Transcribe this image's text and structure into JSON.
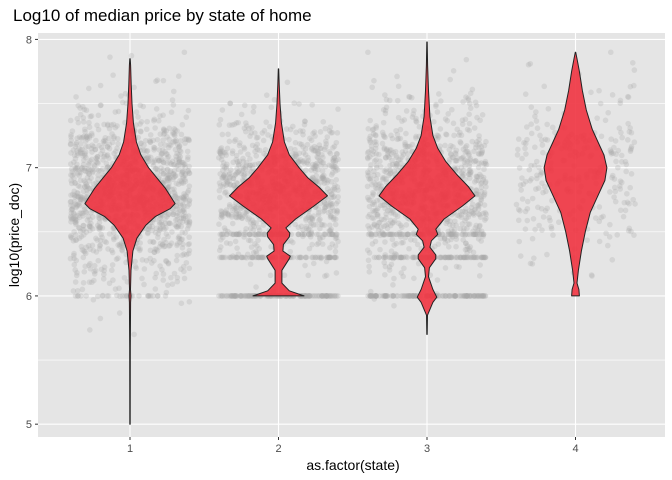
{
  "chart_data": {
    "type": "violin",
    "title": "Log10 of median price by state of home",
    "xlabel": "as.factor(state)",
    "ylabel": "log10(price_doc)",
    "categories": [
      "1",
      "2",
      "3",
      "4"
    ],
    "ylim": [
      4.9,
      8.05
    ],
    "y_ticks": [
      "5",
      "6",
      "7",
      "8"
    ],
    "grid": true,
    "colors": {
      "panel": "#e5e5e5",
      "grid": "#ffffff",
      "violin_fill": "#ef3340",
      "violin_stroke": "#222222",
      "points": "#a9a9a9"
    },
    "violins": [
      {
        "category": "1",
        "min": 5.0,
        "max": 7.85,
        "profile": [
          [
            5.0,
            0.004
          ],
          [
            5.6,
            0.006
          ],
          [
            5.95,
            0.012
          ],
          [
            6.0,
            0.02
          ],
          [
            6.05,
            0.01
          ],
          [
            6.2,
            0.02
          ],
          [
            6.35,
            0.06
          ],
          [
            6.45,
            0.14
          ],
          [
            6.55,
            0.32
          ],
          [
            6.62,
            0.52
          ],
          [
            6.68,
            0.82
          ],
          [
            6.72,
            0.92
          ],
          [
            6.78,
            0.82
          ],
          [
            6.84,
            0.72
          ],
          [
            6.92,
            0.55
          ],
          [
            7.0,
            0.38
          ],
          [
            7.1,
            0.22
          ],
          [
            7.2,
            0.13
          ],
          [
            7.35,
            0.07
          ],
          [
            7.5,
            0.04
          ],
          [
            7.65,
            0.025
          ],
          [
            7.8,
            0.012
          ],
          [
            7.85,
            0.004
          ]
        ]
      },
      {
        "category": "2",
        "min": 6.0,
        "max": 7.77,
        "profile": [
          [
            6.0,
            0.52
          ],
          [
            6.04,
            0.22
          ],
          [
            6.1,
            0.07
          ],
          [
            6.2,
            0.07
          ],
          [
            6.29,
            0.22
          ],
          [
            6.31,
            0.24
          ],
          [
            6.35,
            0.09
          ],
          [
            6.4,
            0.1
          ],
          [
            6.46,
            0.22
          ],
          [
            6.49,
            0.23
          ],
          [
            6.53,
            0.15
          ],
          [
            6.6,
            0.35
          ],
          [
            6.7,
            0.72
          ],
          [
            6.78,
            1.0
          ],
          [
            6.85,
            0.82
          ],
          [
            6.92,
            0.6
          ],
          [
            7.0,
            0.42
          ],
          [
            7.1,
            0.22
          ],
          [
            7.2,
            0.12
          ],
          [
            7.35,
            0.06
          ],
          [
            7.5,
            0.03
          ],
          [
            7.65,
            0.015
          ],
          [
            7.77,
            0.004
          ]
        ]
      },
      {
        "category": "3",
        "min": 5.7,
        "max": 7.98,
        "profile": [
          [
            5.7,
            0.004
          ],
          [
            5.85,
            0.01
          ],
          [
            5.95,
            0.12
          ],
          [
            5.99,
            0.2
          ],
          [
            6.05,
            0.12
          ],
          [
            6.15,
            0.03
          ],
          [
            6.22,
            0.05
          ],
          [
            6.29,
            0.18
          ],
          [
            6.32,
            0.18
          ],
          [
            6.38,
            0.06
          ],
          [
            6.43,
            0.09
          ],
          [
            6.48,
            0.22
          ],
          [
            6.52,
            0.18
          ],
          [
            6.6,
            0.35
          ],
          [
            6.7,
            0.72
          ],
          [
            6.78,
            0.98
          ],
          [
            6.85,
            0.85
          ],
          [
            6.95,
            0.6
          ],
          [
            7.05,
            0.38
          ],
          [
            7.15,
            0.22
          ],
          [
            7.25,
            0.12
          ],
          [
            7.4,
            0.06
          ],
          [
            7.6,
            0.03
          ],
          [
            7.8,
            0.012
          ],
          [
            7.98,
            0.004
          ]
        ]
      },
      {
        "category": "4",
        "min": 6.0,
        "max": 7.9,
        "profile": [
          [
            6.0,
            0.08
          ],
          [
            6.05,
            0.07
          ],
          [
            6.1,
            0.03
          ],
          [
            6.2,
            0.06
          ],
          [
            6.35,
            0.12
          ],
          [
            6.5,
            0.2
          ],
          [
            6.65,
            0.3
          ],
          [
            6.8,
            0.48
          ],
          [
            6.9,
            0.6
          ],
          [
            7.0,
            0.64
          ],
          [
            7.1,
            0.58
          ],
          [
            7.2,
            0.46
          ],
          [
            7.3,
            0.34
          ],
          [
            7.45,
            0.22
          ],
          [
            7.6,
            0.14
          ],
          [
            7.75,
            0.08
          ],
          [
            7.85,
            0.03
          ],
          [
            7.9,
            0.005
          ]
        ]
      }
    ],
    "points": [
      {
        "category": "1",
        "n": 1300,
        "mean": 6.8,
        "sd": 0.33,
        "spread": 0.49
      },
      {
        "category": "2",
        "n": 1200,
        "mean": 6.85,
        "sd": 0.26,
        "spread": 0.49
      },
      {
        "category": "3",
        "n": 1250,
        "mean": 6.85,
        "sd": 0.3,
        "spread": 0.49
      },
      {
        "category": "4",
        "n": 280,
        "mean": 7.0,
        "sd": 0.33,
        "spread": 0.49
      }
    ]
  }
}
